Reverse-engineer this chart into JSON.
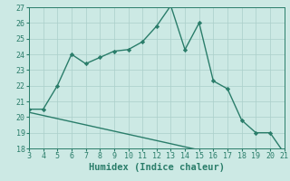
{
  "xlabel": "Humidex (Indice chaleur)",
  "x_values": [
    3,
    4,
    5,
    6,
    7,
    8,
    9,
    10,
    11,
    12,
    13,
    14,
    15,
    16,
    17,
    18,
    19,
    20,
    21
  ],
  "y_main": [
    20.5,
    20.5,
    22,
    24,
    23.4,
    23.8,
    24.2,
    24.3,
    24.8,
    25.8,
    27.1,
    24.3,
    26.0,
    22.3,
    21.8,
    19.8,
    19.0,
    19.0,
    17.7
  ],
  "y_line2": [
    20.3,
    20.1,
    19.9,
    19.7,
    19.5,
    19.3,
    19.1,
    18.9,
    18.7,
    18.5,
    18.3,
    18.1,
    17.9,
    17.7,
    17.5,
    17.3,
    17.1,
    16.9,
    16.7
  ],
  "xlim": [
    3,
    21
  ],
  "ylim": [
    18,
    27
  ],
  "yticks": [
    18,
    19,
    20,
    21,
    22,
    23,
    24,
    25,
    26,
    27
  ],
  "xticks": [
    3,
    4,
    5,
    6,
    7,
    8,
    9,
    10,
    11,
    12,
    13,
    14,
    15,
    16,
    17,
    18,
    19,
    20,
    21
  ],
  "line_color": "#2a7d6a",
  "bg_color": "#cce9e4",
  "grid_color": "#aacfca",
  "marker": "D",
  "marker_size": 2.2,
  "linewidth": 1.0,
  "xlabel_fontsize": 7.5,
  "tick_fontsize": 6.0
}
